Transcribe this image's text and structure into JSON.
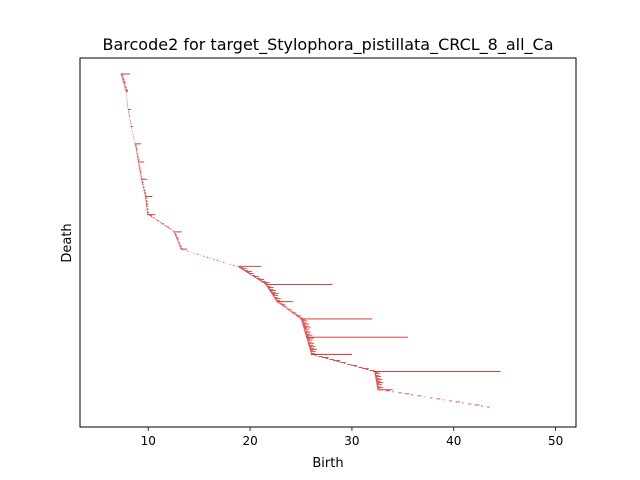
{
  "chart_data": {
    "type": "barcode",
    "title": "Barcode2 for target_Stylophora_pistillata_CRCL_8_all_Ca",
    "xlabel": "Birth",
    "ylabel": "Death",
    "xlim": [
      3.3,
      52.0
    ],
    "xticks": [
      10,
      20,
      30,
      40,
      50
    ],
    "ytick_labels": "none",
    "grid": false,
    "legend": "none",
    "bar_color": "#d62728",
    "bars_shown": 330,
    "representative_bars": [
      {
        "birth": 7.3,
        "death": 8.2
      },
      {
        "birth": 7.8,
        "death": 8.0
      },
      {
        "birth": 8.0,
        "death": 8.3
      },
      {
        "birth": 8.3,
        "death": 8.5
      },
      {
        "birth": 8.7,
        "death": 9.3
      },
      {
        "birth": 9.0,
        "death": 9.6
      },
      {
        "birth": 9.3,
        "death": 9.9
      },
      {
        "birth": 9.7,
        "death": 10.4
      },
      {
        "birth": 9.9,
        "death": 10.7
      },
      {
        "birth": 12.5,
        "death": 13.3
      },
      {
        "birth": 13.2,
        "death": 13.8
      },
      {
        "birth": 18.8,
        "death": 21.1
      },
      {
        "birth": 21.5,
        "death": 28.1
      },
      {
        "birth": 22.6,
        "death": 24.2
      },
      {
        "birth": 25.0,
        "death": 32.0
      },
      {
        "birth": 25.5,
        "death": 35.5
      },
      {
        "birth": 26.0,
        "death": 30.0
      },
      {
        "birth": 32.2,
        "death": 44.6
      },
      {
        "birth": 32.5,
        "death": 34.0
      },
      {
        "birth": 43.3,
        "death": 43.5
      }
    ]
  }
}
